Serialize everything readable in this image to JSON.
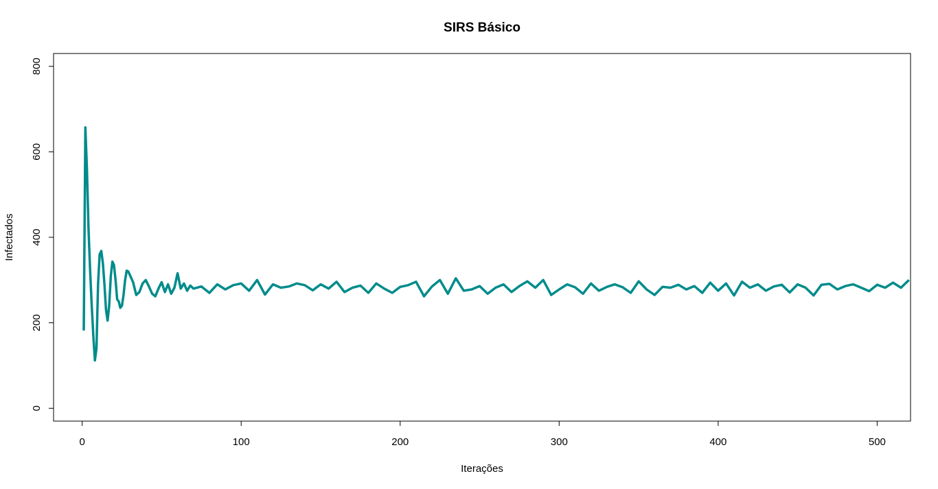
{
  "chart_data": {
    "type": "line",
    "title": "SIRS Básico",
    "xlabel": "Iterações",
    "ylabel": "Infectados",
    "xlim": [
      -18,
      521
    ],
    "ylim": [
      -30,
      830
    ],
    "xticks": [
      0,
      100,
      200,
      300,
      400,
      500
    ],
    "yticks": [
      0,
      200,
      400,
      600,
      800
    ],
    "grid": false,
    "legend": "none",
    "colors": {
      "line": "#008b8b",
      "axis": "#000000"
    },
    "series": [
      {
        "x": [
          1,
          2,
          3,
          4,
          5,
          6,
          7,
          8,
          9,
          10,
          11,
          12,
          13,
          14,
          15,
          16,
          17,
          18,
          19,
          20,
          21,
          22,
          23,
          24,
          25,
          26,
          27,
          28,
          29,
          30,
          32,
          34,
          36,
          38,
          40,
          42,
          44,
          46,
          48,
          50,
          52,
          54,
          56,
          58,
          60,
          62,
          64,
          66,
          68,
          70,
          75,
          80,
          85,
          90,
          95,
          100,
          105,
          110,
          115,
          120,
          125,
          130,
          135,
          140,
          145,
          150,
          155,
          160,
          165,
          170,
          175,
          180,
          185,
          190,
          195,
          200,
          205,
          210,
          215,
          220,
          225,
          230,
          235,
          240,
          245,
          250,
          255,
          260,
          265,
          270,
          275,
          280,
          285,
          290,
          295,
          300,
          305,
          310,
          315,
          320,
          325,
          330,
          335,
          340,
          345,
          350,
          355,
          360,
          365,
          370,
          375,
          380,
          385,
          390,
          395,
          400,
          405,
          410,
          415,
          420,
          425,
          430,
          435,
          440,
          445,
          450,
          455,
          460,
          465,
          470,
          475,
          480,
          485,
          490,
          495,
          500,
          505,
          510,
          515,
          520
        ],
        "y": [
          182,
          657,
          560,
          420,
          320,
          240,
          170,
          112,
          140,
          290,
          360,
          368,
          340,
          290,
          230,
          205,
          240,
          310,
          343,
          335,
          300,
          255,
          250,
          235,
          240,
          265,
          300,
          322,
          320,
          312,
          295,
          265,
          272,
          292,
          300,
          285,
          268,
          262,
          280,
          295,
          272,
          290,
          268,
          282,
          316,
          280,
          292,
          275,
          287,
          280,
          285,
          270,
          290,
          278,
          288,
          292,
          275,
          300,
          266,
          290,
          282,
          285,
          292,
          288,
          276,
          290,
          280,
          296,
          272,
          282,
          287,
          270,
          292,
          280,
          270,
          284,
          288,
          296,
          262,
          285,
          300,
          268,
          304,
          275,
          278,
          286,
          268,
          282,
          290,
          272,
          286,
          297,
          282,
          300,
          265,
          278,
          290,
          283,
          268,
          292,
          275,
          284,
          290,
          283,
          270,
          297,
          278,
          265,
          284,
          282,
          289,
          278,
          286,
          270,
          294,
          275,
          292,
          264,
          296,
          282,
          290,
          275,
          285,
          289,
          271,
          290,
          282,
          264,
          289,
          291,
          278,
          286,
          290,
          282,
          274,
          289,
          282,
          294,
          282,
          300
        ]
      }
    ]
  }
}
